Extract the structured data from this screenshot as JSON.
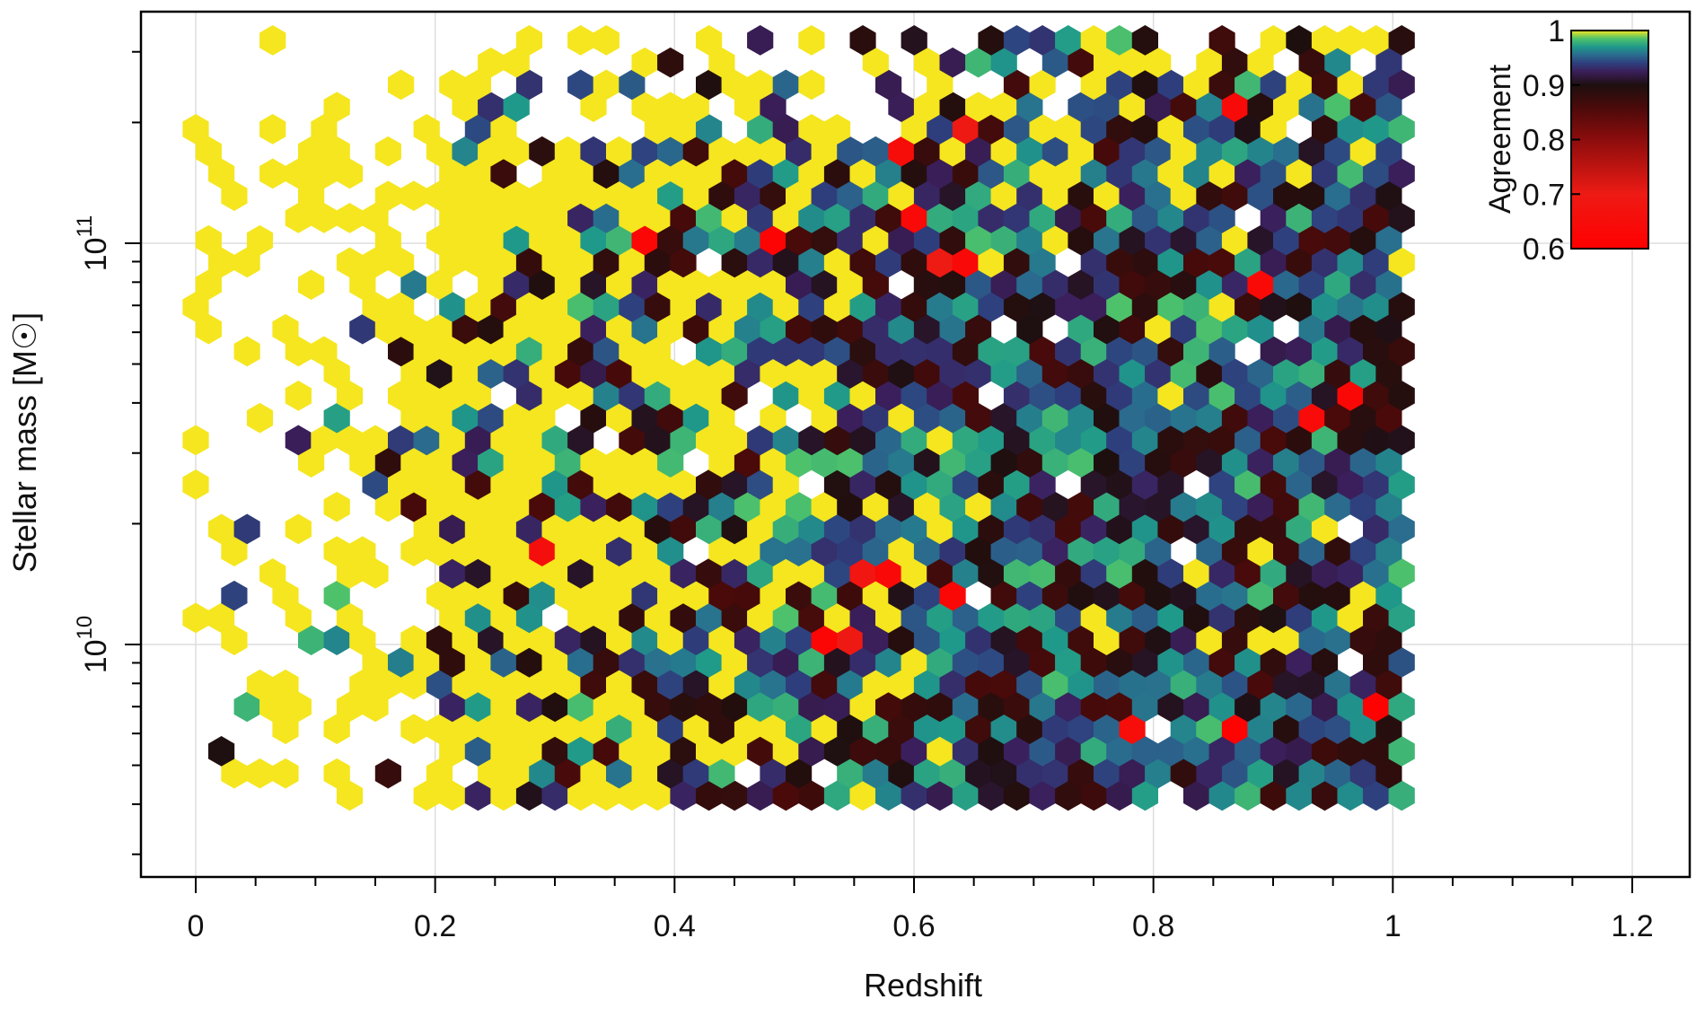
{
  "chart_data": {
    "type": "heatmap",
    "subtype": "hexbin",
    "title": "",
    "xlabel": "Redshift",
    "ylabel": "Stellar mass [M☉]",
    "xscale": "linear",
    "yscale": "log",
    "xlim": [
      -0.05,
      1.25
    ],
    "ylim": [
      3200000000.0,
      360000000000.0
    ],
    "grid": true,
    "x_ticks": [
      0,
      0.2,
      0.4,
      0.6,
      0.8,
      1,
      1.2
    ],
    "x_tick_labels": [
      "0",
      "0.2",
      "0.4",
      "0.6",
      "0.8",
      "1",
      "1.2"
    ],
    "y_ticks": [
      10000000000.0,
      100000000000.0
    ],
    "y_tick_labels": [
      {
        "base": "10",
        "exp": "10"
      },
      {
        "base": "10",
        "exp": "11"
      }
    ],
    "colorbar": {
      "label": "Agreement",
      "range": [
        0.6,
        1.0
      ],
      "ticks": [
        1,
        0.9,
        0.8,
        0.7,
        0.6
      ],
      "tick_labels": [
        "1",
        "0.9",
        "0.8",
        "0.7",
        "0.6"
      ],
      "location": "top-right, inside axes",
      "stops": [
        {
          "v": 0.6,
          "color": "#ff0000"
        },
        {
          "v": 0.7,
          "color": "#ee1a14"
        },
        {
          "v": 0.8,
          "color": "#8c0d0d"
        },
        {
          "v": 0.86,
          "color": "#4a0a0a"
        },
        {
          "v": 0.9,
          "color": "#1e0f0f"
        },
        {
          "v": 0.925,
          "color": "#3b1f5c"
        },
        {
          "v": 0.94,
          "color": "#2e3f7d"
        },
        {
          "v": 0.955,
          "color": "#2a6b8e"
        },
        {
          "v": 0.97,
          "color": "#1f998a"
        },
        {
          "v": 0.985,
          "color": "#4fc36a"
        },
        {
          "v": 1.0,
          "color": "#f5e61f"
        }
      ]
    },
    "data_extent": {
      "x": [
        0.0,
        1.01
      ],
      "y": [
        4200000000.0,
        340000000000.0
      ]
    },
    "description_of_pattern": "Dense hexagonal bins filling redshift 0.2–1.0 and stellar mass 4e9–3e11; low-redshift bins are mostly agreement ≈ 1 (yellow), higher-redshift bins mix dark red/black (≈0.9) with purple, teal and green (0.92–0.98); a few isolated red bins (≈0.6–0.7)."
  }
}
